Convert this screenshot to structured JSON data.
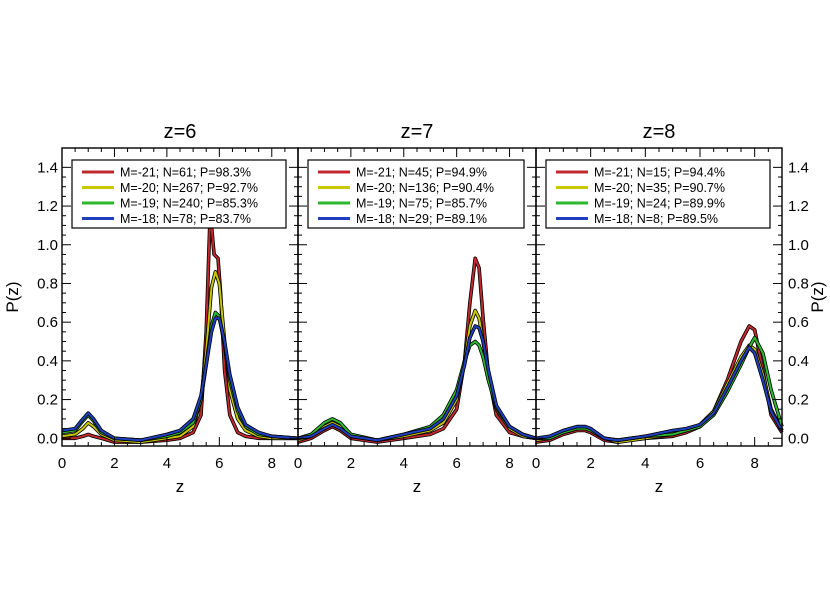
{
  "chart_data": {
    "type": "line",
    "ylabel": "P(z)",
    "xlabel": "z",
    "xlim": [
      0,
      9
    ],
    "ylim": [
      -0.04,
      1.5
    ],
    "x_ticks": [
      0,
      2,
      4,
      6,
      8
    ],
    "y_ticks": [
      0.0,
      0.2,
      0.4,
      0.6,
      0.8,
      1.0,
      1.2,
      1.4
    ],
    "legend_placement": "top",
    "colors": {
      "M-21": "#c0282d",
      "M-20": "#c8c800",
      "M-19": "#2eb82e",
      "M-18": "#1f3fbf"
    },
    "panels": [
      {
        "title": "z=6",
        "series": [
          {
            "name": "M=-21; N=61; P=98.3%",
            "color": "#c0282d",
            "x": [
              0,
              0.5,
              0.8,
              1.0,
              1.2,
              1.5,
              2.0,
              3.0,
              4.0,
              4.5,
              5.0,
              5.3,
              5.5,
              5.65,
              5.8,
              5.95,
              6.05,
              6.2,
              6.4,
              6.7,
              7.0,
              7.5,
              8.0,
              9.0
            ],
            "y": [
              0.0,
              0.0,
              0.01,
              0.02,
              0.01,
              0.0,
              -0.02,
              -0.02,
              -0.01,
              0.0,
              0.03,
              0.12,
              0.55,
              1.17,
              0.95,
              0.93,
              0.75,
              0.35,
              0.12,
              0.03,
              0.01,
              0.0,
              0.0,
              0.0
            ]
          },
          {
            "name": "M=-20; N=267; P=92.7%",
            "color": "#c8c800",
            "x": [
              0,
              0.5,
              0.8,
              1.0,
              1.2,
              1.5,
              2.0,
              3.0,
              4.0,
              4.5,
              5.0,
              5.3,
              5.5,
              5.7,
              5.85,
              6.0,
              6.2,
              6.4,
              6.7,
              7.0,
              7.5,
              8.0,
              9.0
            ],
            "y": [
              0.01,
              0.02,
              0.05,
              0.08,
              0.06,
              0.02,
              -0.01,
              -0.02,
              0.0,
              0.01,
              0.06,
              0.2,
              0.45,
              0.78,
              0.86,
              0.8,
              0.5,
              0.25,
              0.1,
              0.04,
              0.01,
              0.0,
              0.0
            ]
          },
          {
            "name": "M=-19; N=240; P=85.3%",
            "color": "#2eb82e",
            "x": [
              0,
              0.5,
              0.8,
              1.0,
              1.2,
              1.5,
              2.0,
              3.0,
              4.0,
              4.5,
              5.0,
              5.3,
              5.5,
              5.7,
              5.85,
              6.0,
              6.2,
              6.4,
              6.7,
              7.0,
              7.5,
              8.0,
              9.0
            ],
            "y": [
              0.03,
              0.04,
              0.09,
              0.12,
              0.09,
              0.03,
              0.0,
              -0.01,
              0.01,
              0.03,
              0.08,
              0.2,
              0.38,
              0.58,
              0.65,
              0.63,
              0.48,
              0.3,
              0.14,
              0.06,
              0.02,
              0.01,
              0.0
            ]
          },
          {
            "name": "M=-18; N=78; P=83.7%",
            "color": "#1f3fbf",
            "x": [
              0,
              0.5,
              0.8,
              1.0,
              1.2,
              1.5,
              2.0,
              3.0,
              4.0,
              4.5,
              5.0,
              5.3,
              5.5,
              5.7,
              5.85,
              6.0,
              6.2,
              6.4,
              6.7,
              7.0,
              7.5,
              8.0,
              9.0
            ],
            "y": [
              0.04,
              0.05,
              0.1,
              0.13,
              0.1,
              0.04,
              0.0,
              -0.01,
              0.02,
              0.04,
              0.1,
              0.22,
              0.38,
              0.55,
              0.62,
              0.62,
              0.5,
              0.33,
              0.16,
              0.07,
              0.03,
              0.01,
              0.0
            ]
          }
        ],
        "legend": [
          "M=-21; N=61; P=98.3%",
          "M=-20; N=267; P=92.7%",
          "M=-19; N=240; P=85.3%",
          "M=-18; N=78; P=83.7%"
        ]
      },
      {
        "title": "z=7",
        "series": [
          {
            "name": "M=-21; N=45; P=94.9%",
            "color": "#c0282d",
            "x": [
              0,
              0.5,
              1.0,
              1.3,
              1.6,
              2.0,
              3.0,
              4.0,
              5.0,
              5.5,
              6.0,
              6.3,
              6.5,
              6.7,
              6.85,
              7.0,
              7.2,
              7.5,
              8.0,
              8.5,
              9.0
            ],
            "y": [
              -0.02,
              0.0,
              0.04,
              0.06,
              0.04,
              0.0,
              -0.02,
              0.0,
              0.02,
              0.05,
              0.15,
              0.4,
              0.7,
              0.93,
              0.88,
              0.62,
              0.33,
              0.12,
              0.03,
              0.01,
              0.0
            ]
          },
          {
            "name": "M=-20; N=136; P=90.4%",
            "color": "#c8c800",
            "x": [
              0,
              0.5,
              1.0,
              1.3,
              1.6,
              2.0,
              3.0,
              4.0,
              5.0,
              5.5,
              6.0,
              6.3,
              6.5,
              6.7,
              6.85,
              7.0,
              7.2,
              7.5,
              8.0,
              8.5,
              9.0
            ],
            "y": [
              -0.01,
              0.01,
              0.06,
              0.08,
              0.06,
              0.01,
              -0.01,
              0.01,
              0.04,
              0.08,
              0.2,
              0.4,
              0.58,
              0.66,
              0.62,
              0.5,
              0.33,
              0.15,
              0.05,
              0.01,
              0.0
            ]
          },
          {
            "name": "M=-19; N=75; P=85.7%",
            "color": "#2eb82e",
            "x": [
              0,
              0.5,
              1.0,
              1.3,
              1.6,
              2.0,
              3.0,
              4.0,
              5.0,
              5.5,
              6.0,
              6.3,
              6.5,
              6.7,
              6.85,
              7.0,
              7.2,
              7.5,
              8.0,
              8.5,
              9.0
            ],
            "y": [
              0.0,
              0.02,
              0.08,
              0.1,
              0.08,
              0.02,
              -0.01,
              0.02,
              0.06,
              0.12,
              0.25,
              0.4,
              0.48,
              0.5,
              0.48,
              0.42,
              0.3,
              0.16,
              0.06,
              0.02,
              0.0
            ]
          },
          {
            "name": "M=-18; N=29; P=89.1%",
            "color": "#1f3fbf",
            "x": [
              0,
              0.5,
              1.0,
              1.3,
              1.6,
              2.0,
              3.0,
              4.0,
              5.0,
              5.5,
              6.0,
              6.3,
              6.5,
              6.7,
              6.85,
              7.0,
              7.2,
              7.5,
              8.0,
              8.5,
              9.0
            ],
            "y": [
              0.0,
              0.01,
              0.05,
              0.07,
              0.05,
              0.01,
              -0.01,
              0.02,
              0.05,
              0.1,
              0.22,
              0.38,
              0.52,
              0.58,
              0.57,
              0.5,
              0.35,
              0.17,
              0.06,
              0.02,
              0.0
            ]
          }
        ],
        "legend": [
          "M=-21; N=45; P=94.9%",
          "M=-20; N=136; P=90.4%",
          "M=-19; N=75; P=85.7%",
          "M=-18; N=29; P=89.1%"
        ]
      },
      {
        "title": "z=8",
        "series": [
          {
            "name": "M=-21; N=15; P=94.4%",
            "color": "#c0282d",
            "x": [
              0,
              0.5,
              1.0,
              1.5,
              1.8,
              2.0,
              2.5,
              3.0,
              4.0,
              5.0,
              5.5,
              6.0,
              6.5,
              7.0,
              7.5,
              7.8,
              8.0,
              8.3,
              8.6,
              9.0
            ],
            "y": [
              -0.02,
              -0.01,
              0.02,
              0.04,
              0.04,
              0.03,
              -0.01,
              -0.02,
              0.0,
              0.01,
              0.03,
              0.06,
              0.14,
              0.3,
              0.5,
              0.58,
              0.56,
              0.35,
              0.12,
              0.03
            ]
          },
          {
            "name": "M=-20; N=35; P=90.7%",
            "color": "#c8c800",
            "x": [
              0,
              0.5,
              1.0,
              1.5,
              1.8,
              2.0,
              2.5,
              3.0,
              4.0,
              5.0,
              5.5,
              6.0,
              6.5,
              7.0,
              7.5,
              7.8,
              8.0,
              8.3,
              8.6,
              9.0
            ],
            "y": [
              -0.01,
              0.0,
              0.03,
              0.05,
              0.05,
              0.04,
              0.0,
              -0.02,
              0.0,
              0.02,
              0.04,
              0.07,
              0.14,
              0.28,
              0.42,
              0.48,
              0.46,
              0.33,
              0.15,
              0.04
            ]
          },
          {
            "name": "M=-19; N=24; P=89.9%",
            "color": "#2eb82e",
            "x": [
              0,
              0.5,
              1.0,
              1.5,
              1.8,
              2.0,
              2.5,
              3.0,
              4.0,
              5.0,
              5.5,
              6.0,
              6.5,
              7.0,
              7.5,
              7.8,
              8.0,
              8.3,
              8.6,
              9.0
            ],
            "y": [
              0.0,
              0.0,
              0.03,
              0.05,
              0.05,
              0.04,
              0.0,
              -0.01,
              0.01,
              0.02,
              0.04,
              0.06,
              0.12,
              0.24,
              0.38,
              0.47,
              0.52,
              0.44,
              0.25,
              0.06
            ]
          },
          {
            "name": "M=-18; N=8; P=89.5%",
            "color": "#1f3fbf",
            "x": [
              0,
              0.5,
              1.0,
              1.5,
              1.8,
              2.0,
              2.5,
              3.0,
              4.0,
              5.0,
              5.5,
              6.0,
              6.5,
              7.0,
              7.5,
              7.8,
              8.0,
              8.3,
              8.6,
              9.0
            ],
            "y": [
              0.0,
              0.01,
              0.04,
              0.06,
              0.06,
              0.05,
              0.0,
              -0.01,
              0.01,
              0.04,
              0.05,
              0.07,
              0.13,
              0.26,
              0.4,
              0.47,
              0.44,
              0.3,
              0.14,
              0.04
            ]
          }
        ],
        "legend": [
          "M=-21; N=15; P=94.4%",
          "M=-20; N=35; P=90.7%",
          "M=-19; N=24; P=89.9%",
          "M=-18; N=8; P=89.5%"
        ]
      }
    ]
  }
}
